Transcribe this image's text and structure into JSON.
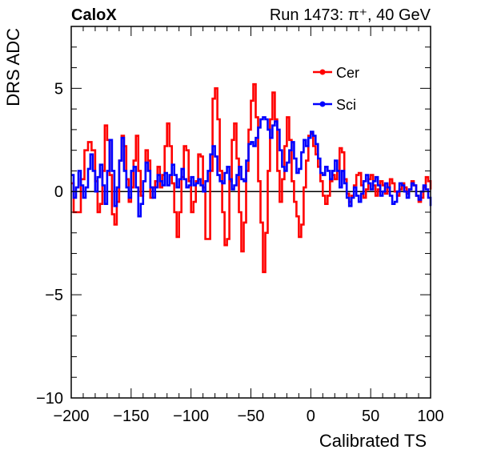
{
  "chart_data": {
    "type": "line",
    "title_left": "CaloX",
    "title_right": "Run 1473:   π⁺, 40 GeV",
    "xlabel": "Calibrated TS",
    "ylabel": "DRS ADC",
    "xlim": [
      -200,
      100
    ],
    "ylim": [
      -10,
      8
    ],
    "x_ticks": [
      -200,
      -150,
      -100,
      -50,
      0,
      50,
      100
    ],
    "x_tick_labels": [
      "−200",
      "−150",
      "−100",
      "−50",
      "0",
      "50",
      "100"
    ],
    "y_ticks": [
      -10,
      -5,
      0,
      5
    ],
    "y_tick_labels": [
      "−10",
      "−5",
      "0",
      "5"
    ],
    "baseline": 0,
    "legend_position": "top-right",
    "series": [
      {
        "name": "Cer",
        "color": "#ff0000",
        "points": [
          [
            -200,
            0.4
          ],
          [
            -198,
            -1.0
          ],
          [
            -195,
            -1.0
          ],
          [
            -192,
            0.6
          ],
          [
            -189,
            2.0
          ],
          [
            -186,
            2.4
          ],
          [
            -183,
            2.0
          ],
          [
            -180,
            0.5
          ],
          [
            -178,
            -1.0
          ],
          [
            -176,
            -0.6
          ],
          [
            -174,
            1.0
          ],
          [
            -172,
            3.2
          ],
          [
            -170,
            2.5
          ],
          [
            -168,
            0.8
          ],
          [
            -166,
            -1.1
          ],
          [
            -164,
            -1.6
          ],
          [
            -162,
            -0.5
          ],
          [
            -160,
            1.5
          ],
          [
            -158,
            2.7
          ],
          [
            -156,
            2.2
          ],
          [
            -154,
            0.6
          ],
          [
            -152,
            -0.5
          ],
          [
            -150,
            0.2
          ],
          [
            -148,
            1.5
          ],
          [
            -146,
            2.7
          ],
          [
            -144,
            1.0
          ],
          [
            -142,
            -0.2
          ],
          [
            -140,
            0.5
          ],
          [
            -138,
            2.0
          ],
          [
            -136,
            1.5
          ],
          [
            -134,
            -0.3
          ],
          [
            -132,
            0.2
          ],
          [
            -130,
            0.5
          ],
          [
            -128,
            1.2
          ],
          [
            -126,
            0.2
          ],
          [
            -124,
            0.8
          ],
          [
            -122,
            2.2
          ],
          [
            -120,
            3.3
          ],
          [
            -118,
            2.2
          ],
          [
            -116,
            0.4
          ],
          [
            -114,
            -1.0
          ],
          [
            -112,
            -2.2
          ],
          [
            -110,
            -1.0
          ],
          [
            -108,
            0.7
          ],
          [
            -106,
            2.2
          ],
          [
            -104,
            2.0
          ],
          [
            -102,
            0.5
          ],
          [
            -100,
            -1.0
          ],
          [
            -98,
            -0.5
          ],
          [
            -96,
            0.5
          ],
          [
            -94,
            1.8
          ],
          [
            -92,
            1.7
          ],
          [
            -90,
            0.2
          ],
          [
            -88,
            -2.3
          ],
          [
            -86,
            -2.3
          ],
          [
            -84,
            1.0
          ],
          [
            -82,
            4.5
          ],
          [
            -80,
            5.0
          ],
          [
            -78,
            3.5
          ],
          [
            -76,
            1.0
          ],
          [
            -74,
            -1.0
          ],
          [
            -72,
            -2.6
          ],
          [
            -70,
            -2.3
          ],
          [
            -68,
            0.5
          ],
          [
            -66,
            2.5
          ],
          [
            -64,
            3.3
          ],
          [
            -62,
            1.6
          ],
          [
            -60,
            -1.0
          ],
          [
            -58,
            -2.9
          ],
          [
            -56,
            -1.5
          ],
          [
            -54,
            1.0
          ],
          [
            -52,
            3.0
          ],
          [
            -50,
            4.4
          ],
          [
            -48,
            5.2
          ],
          [
            -46,
            3.6
          ],
          [
            -44,
            0.5
          ],
          [
            -42,
            -1.5
          ],
          [
            -40,
            -3.9
          ],
          [
            -38,
            -2.0
          ],
          [
            -36,
            1.0
          ],
          [
            -34,
            3.5
          ],
          [
            -32,
            4.8
          ],
          [
            -30,
            3.5
          ],
          [
            -28,
            1.0
          ],
          [
            -26,
            -0.5
          ],
          [
            -24,
            0.6
          ],
          [
            -22,
            2.2
          ],
          [
            -20,
            3.6
          ],
          [
            -18,
            2.5
          ],
          [
            -16,
            0.5
          ],
          [
            -14,
            -0.5
          ],
          [
            -12,
            -1.2
          ],
          [
            -10,
            -2.2
          ],
          [
            -8,
            -1.6
          ],
          [
            -6,
            0.2
          ],
          [
            -4,
            1.5
          ],
          [
            -2,
            2.7
          ],
          [
            0,
            2.8
          ],
          [
            2,
            2.2
          ],
          [
            4,
            1.8
          ],
          [
            6,
            1.2
          ],
          [
            8,
            0.5
          ],
          [
            10,
            -0.2
          ],
          [
            12,
            -0.6
          ],
          [
            14,
            -0.2
          ],
          [
            16,
            0.5
          ],
          [
            18,
            0.8
          ],
          [
            20,
            0.6
          ],
          [
            22,
            1.0
          ],
          [
            24,
            2.1
          ],
          [
            26,
            1.9
          ],
          [
            28,
            0.6
          ],
          [
            30,
            -0.1
          ],
          [
            32,
            -0.5
          ],
          [
            34,
            -0.2
          ],
          [
            36,
            0.3
          ],
          [
            38,
            0.8
          ],
          [
            40,
            0.9
          ],
          [
            42,
            0.3
          ],
          [
            44,
            -0.3
          ],
          [
            46,
            0.1
          ],
          [
            48,
            0.6
          ],
          [
            50,
            0.8
          ],
          [
            52,
            0.3
          ],
          [
            54,
            -0.2
          ],
          [
            56,
            0.1
          ],
          [
            58,
            0.5
          ],
          [
            60,
            0.3
          ],
          [
            62,
            -0.1
          ],
          [
            64,
            0.2
          ],
          [
            66,
            0.6
          ],
          [
            68,
            0.4
          ],
          [
            70,
            0.0
          ],
          [
            72,
            -0.2
          ],
          [
            74,
            0.1
          ],
          [
            76,
            0.4
          ],
          [
            78,
            0.2
          ],
          [
            80,
            -0.1
          ],
          [
            82,
            0.1
          ],
          [
            84,
            0.5
          ],
          [
            86,
            0.3
          ],
          [
            88,
            -0.2
          ],
          [
            90,
            -0.5
          ],
          [
            92,
            -0.3
          ],
          [
            94,
            0.2
          ],
          [
            96,
            0.7
          ],
          [
            98,
            0.5
          ],
          [
            100,
            0.1
          ]
        ]
      },
      {
        "name": "Sci",
        "color": "#0000ff",
        "points": [
          [
            -200,
            0.8
          ],
          [
            -198,
            -0.3
          ],
          [
            -196,
            0.2
          ],
          [
            -194,
            1.0
          ],
          [
            -192,
            0.3
          ],
          [
            -190,
            -0.3
          ],
          [
            -188,
            0.2
          ],
          [
            -186,
            1.1
          ],
          [
            -184,
            1.8
          ],
          [
            -182,
            1.0
          ],
          [
            -180,
            0.0
          ],
          [
            -178,
            0.7
          ],
          [
            -176,
            1.3
          ],
          [
            -174,
            0.3
          ],
          [
            -172,
            -0.6
          ],
          [
            -170,
            1.0
          ],
          [
            -168,
            2.5
          ],
          [
            -166,
            1.0
          ],
          [
            -164,
            -0.7
          ],
          [
            -162,
            0.2
          ],
          [
            -160,
            1.5
          ],
          [
            -158,
            2.6
          ],
          [
            -156,
            1.0
          ],
          [
            -154,
            0.2
          ],
          [
            -152,
            -0.3
          ],
          [
            -150,
            1.0
          ],
          [
            -148,
            1.2
          ],
          [
            -146,
            0.2
          ],
          [
            -144,
            -1.2
          ],
          [
            -142,
            -0.6
          ],
          [
            -140,
            0.5
          ],
          [
            -138,
            1.4
          ],
          [
            -136,
            1.0
          ],
          [
            -134,
            0.2
          ],
          [
            -132,
            -0.3
          ],
          [
            -130,
            0.2
          ],
          [
            -128,
            0.8
          ],
          [
            -126,
            0.5
          ],
          [
            -124,
            0.3
          ],
          [
            -122,
            0.9
          ],
          [
            -120,
            0.3
          ],
          [
            -118,
            0.8
          ],
          [
            -116,
            1.3
          ],
          [
            -114,
            0.8
          ],
          [
            -112,
            0.2
          ],
          [
            -110,
            0.6
          ],
          [
            -108,
            1.1
          ],
          [
            -106,
            0.6
          ],
          [
            -104,
            0.2
          ],
          [
            -102,
            0.3
          ],
          [
            -100,
            0.7
          ],
          [
            -98,
            0.3
          ],
          [
            -96,
            0.4
          ],
          [
            -94,
            0.6
          ],
          [
            -92,
            0.3
          ],
          [
            -90,
            0.0
          ],
          [
            -88,
            0.5
          ],
          [
            -86,
            1.0
          ],
          [
            -84,
            1.8
          ],
          [
            -82,
            2.2
          ],
          [
            -80,
            1.7
          ],
          [
            -78,
            0.8
          ],
          [
            -76,
            0.5
          ],
          [
            -74,
            0.4
          ],
          [
            -72,
            0.9
          ],
          [
            -70,
            1.2
          ],
          [
            -68,
            0.6
          ],
          [
            -66,
            0.1
          ],
          [
            -64,
            0.3
          ],
          [
            -62,
            0.8
          ],
          [
            -60,
            1.2
          ],
          [
            -58,
            0.6
          ],
          [
            -56,
            0.5
          ],
          [
            -54,
            1.5
          ],
          [
            -52,
            2.3
          ],
          [
            -50,
            2.4
          ],
          [
            -48,
            2.2
          ],
          [
            -46,
            2.6
          ],
          [
            -44,
            3.1
          ],
          [
            -42,
            3.5
          ],
          [
            -40,
            3.6
          ],
          [
            -38,
            3.5
          ],
          [
            -36,
            3.0
          ],
          [
            -34,
            2.6
          ],
          [
            -32,
            3.2
          ],
          [
            -30,
            3.4
          ],
          [
            -28,
            3.0
          ],
          [
            -26,
            2.0
          ],
          [
            -24,
            1.2
          ],
          [
            -22,
            1.0
          ],
          [
            -20,
            1.4
          ],
          [
            -18,
            2.0
          ],
          [
            -16,
            2.4
          ],
          [
            -14,
            1.6
          ],
          [
            -12,
            0.9
          ],
          [
            -10,
            1.1
          ],
          [
            -8,
            1.9
          ],
          [
            -6,
            2.5
          ],
          [
            -4,
            2.2
          ],
          [
            -2,
            2.6
          ],
          [
            0,
            2.9
          ],
          [
            2,
            2.7
          ],
          [
            4,
            2.3
          ],
          [
            6,
            1.6
          ],
          [
            8,
            0.9
          ],
          [
            10,
            0.8
          ],
          [
            12,
            1.2
          ],
          [
            14,
            1.0
          ],
          [
            16,
            0.6
          ],
          [
            18,
            1.0
          ],
          [
            20,
            1.5
          ],
          [
            22,
            1.0
          ],
          [
            24,
            0.2
          ],
          [
            26,
            1.0
          ],
          [
            28,
            0.4
          ],
          [
            30,
            -0.3
          ],
          [
            32,
            -0.7
          ],
          [
            34,
            -0.3
          ],
          [
            36,
            0.2
          ],
          [
            38,
            -0.2
          ],
          [
            40,
            -0.5
          ],
          [
            42,
            -0.1
          ],
          [
            44,
            0.5
          ],
          [
            46,
            0.8
          ],
          [
            48,
            0.4
          ],
          [
            50,
            0.1
          ],
          [
            52,
            0.5
          ],
          [
            54,
            0.7
          ],
          [
            56,
            0.3
          ],
          [
            58,
            -0.2
          ],
          [
            60,
            0.0
          ],
          [
            62,
            0.4
          ],
          [
            64,
            0.2
          ],
          [
            66,
            -0.2
          ],
          [
            68,
            -0.6
          ],
          [
            70,
            -0.5
          ],
          [
            72,
            0.0
          ],
          [
            74,
            0.4
          ],
          [
            76,
            0.3
          ],
          [
            78,
            0.0
          ],
          [
            80,
            -0.3
          ],
          [
            82,
            0.1
          ],
          [
            84,
            0.4
          ],
          [
            86,
            0.3
          ],
          [
            88,
            -0.2
          ],
          [
            90,
            -0.4
          ],
          [
            92,
            0.0
          ],
          [
            94,
            0.3
          ],
          [
            96,
            0.1
          ],
          [
            98,
            -0.3
          ],
          [
            100,
            -0.7
          ]
        ]
      }
    ]
  }
}
